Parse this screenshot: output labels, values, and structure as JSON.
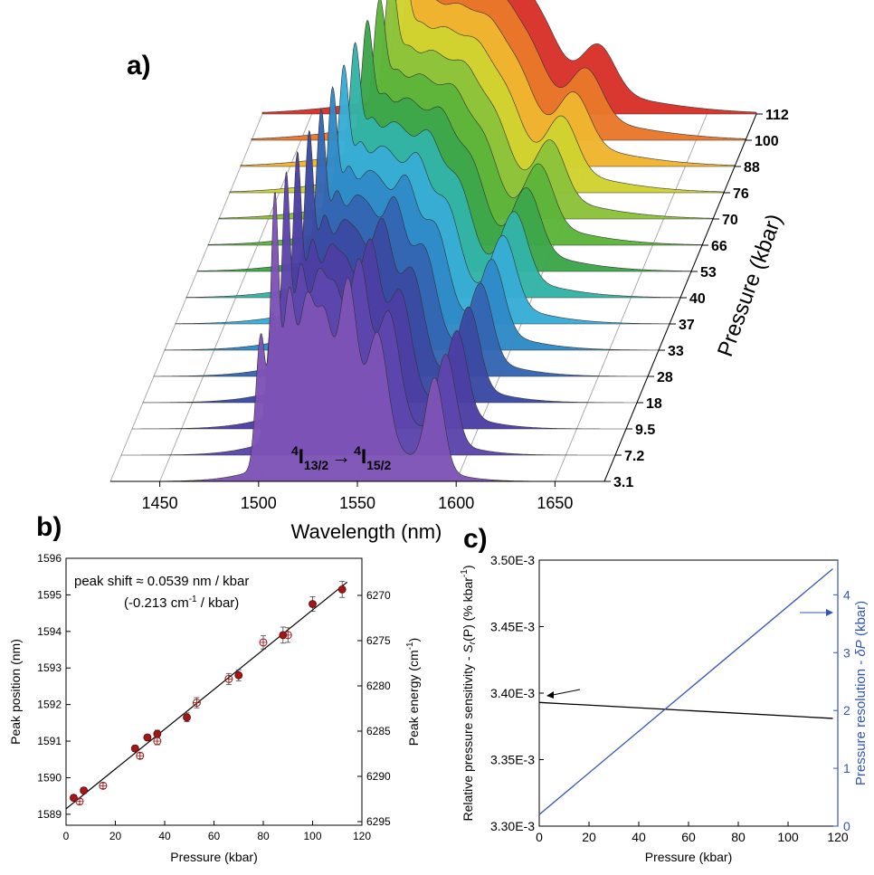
{
  "panel_a": {
    "label": "a)",
    "xlabel": "Wavelength (nm)",
    "zlabel": "Pressure (kbar)",
    "annotation": {
      "main": "4I13/2 → 4I15/2",
      "sup1": "4",
      "base1": "I",
      "sub1": "13/2",
      "arrow": "→",
      "sup2": "4",
      "base2": "I",
      "sub2": "15/2"
    }
  },
  "panel_b": {
    "label": "b)",
    "annotation_line1": "peak shift ≈ 0.0539 nm / kbar",
    "annotation_line2_pre": "(-0.213 cm",
    "annotation_line2_sup": "-1",
    "annotation_line2_post": " / kbar)"
  },
  "panel_c": {
    "label": "c)",
    "ylabel_left_pre": "Relative pressure sensitivity - ",
    "ylabel_left_S": "S",
    "ylabel_left_sub": "r",
    "ylabel_left_mid": "(P) (% kbar",
    "ylabel_left_sup": "-1",
    "ylabel_left_post": ")",
    "ylabel_right_pre": "Pressure resolution - ",
    "ylabel_right_delta": "δP",
    "ylabel_right_post": " (kbar)"
  },
  "chart_data": [
    {
      "type": "area",
      "panel": "a",
      "title": "",
      "xlabel": "Wavelength (nm)",
      "zlabel": "Pressure (kbar)",
      "xticks": [
        1450,
        1500,
        1550,
        1600,
        1650
      ],
      "xlim": [
        1425,
        1675
      ],
      "pressures": [
        "3.1",
        "7.2",
        "9.5",
        "18",
        "28",
        "33",
        "37",
        "40",
        "53",
        "66",
        "70",
        "76",
        "88",
        "100",
        "112"
      ],
      "series_colors": [
        "#7e53b6",
        "#5d45ac",
        "#4c3fa4",
        "#3b4aa3",
        "#3566b2",
        "#2f8ac7",
        "#38acd6",
        "#33b4a6",
        "#3ca64a",
        "#5cb53a",
        "#8cc23a",
        "#cfd230",
        "#f0b530",
        "#e8782a",
        "#d8322a"
      ],
      "peak_shift_nm_per_kbar": 0.0539,
      "peaks": [
        {
          "center": 1501,
          "height": 0.52,
          "width": 2.5
        },
        {
          "center": 1508,
          "height": 1.0,
          "width": 2.0
        },
        {
          "center": 1515,
          "height": 0.6,
          "width": 3.0
        },
        {
          "center": 1524,
          "height": 0.55,
          "width": 4.0
        },
        {
          "center": 1533,
          "height": 0.45,
          "width": 4.0
        },
        {
          "center": 1545,
          "height": 0.6,
          "width": 4.5
        },
        {
          "center": 1560,
          "height": 0.42,
          "width": 5.0
        },
        {
          "center": 1589,
          "height": 0.35,
          "width": 4.5
        },
        {
          "center": 1545,
          "height": 0.18,
          "width": 28.0
        }
      ]
    },
    {
      "type": "scatter",
      "panel": "b",
      "title": "",
      "xlabel": "Pressure (kbar)",
      "ylabel": "Peak position (nm)",
      "ylabel_right": "Peak energy (cm-1)",
      "xlim": [
        0,
        120
      ],
      "ylim": [
        1588.7,
        1596
      ],
      "xticks": [
        0,
        20,
        40,
        60,
        80,
        100,
        120
      ],
      "yticks": [
        1589,
        1590,
        1591,
        1592,
        1593,
        1594,
        1595,
        1596
      ],
      "yticks_right": [
        6270,
        6275,
        6280,
        6285,
        6290,
        6295
      ],
      "fit": {
        "x": [
          0,
          114
        ],
        "y": [
          1589.15,
          1595.35
        ]
      },
      "series": [
        {
          "name": "",
          "marker": "filled",
          "x": [
            3.1,
            7.2,
            28,
            33,
            37,
            49,
            70,
            88,
            100,
            112
          ],
          "y": [
            1589.45,
            1589.65,
            1590.8,
            1591.1,
            1591.2,
            1591.65,
            1592.8,
            1593.9,
            1594.75,
            1595.15
          ],
          "err": [
            0.08,
            0.08,
            0.08,
            0.08,
            0.1,
            0.12,
            0.15,
            0.22,
            0.2,
            0.22
          ]
        },
        {
          "name": "",
          "marker": "open",
          "x": [
            5.5,
            15,
            30,
            37,
            53,
            66,
            80,
            90
          ],
          "y": [
            1589.35,
            1589.78,
            1590.6,
            1591.0,
            1592.05,
            1592.7,
            1593.7,
            1593.9
          ],
          "err": [
            0.08,
            0.08,
            0.08,
            0.1,
            0.14,
            0.15,
            0.18,
            0.2
          ]
        }
      ]
    },
    {
      "type": "line",
      "panel": "c",
      "title": "",
      "xlabel": "Pressure (kbar)",
      "xlim": [
        0,
        120
      ],
      "ylim_left": [
        0.0033,
        0.0035
      ],
      "ylim_right": [
        0,
        4.6
      ],
      "xticks": [
        0,
        20,
        40,
        60,
        80,
        100,
        120
      ],
      "yticks_left": [
        "3.30E-3",
        "3.35E-3",
        "3.40E-3",
        "3.45E-3",
        "3.50E-3"
      ],
      "yticks_right": [
        0,
        1,
        2,
        3,
        4
      ],
      "series": [
        {
          "name": "",
          "axis": "left",
          "color": "#000000",
          "x": [
            0,
            118
          ],
          "y": [
            0.003393,
            0.003381
          ]
        },
        {
          "name": "",
          "axis": "right",
          "color": "#3355bb",
          "x": [
            0,
            118
          ],
          "y": [
            0.2,
            4.45
          ]
        }
      ]
    }
  ]
}
